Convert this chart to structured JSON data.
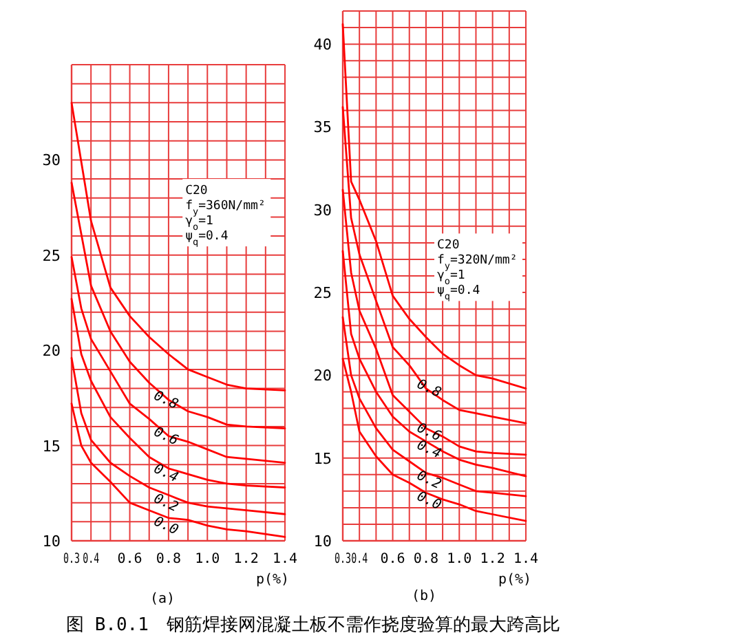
{
  "chart_data": [
    {
      "type": "line",
      "title": "图 B.0.1　钢筋焊接网混凝土板不需作挠度验算的最大跨高比",
      "subtitle": "(a)",
      "xlabel": "p(%)",
      "annotations": [
        "C20",
        "f$_{y}$=360N/mm²",
        "γ$_{o}$=1",
        "ψ$_{q}$=0.4"
      ],
      "x": [
        0.3,
        0.35,
        0.4,
        0.5,
        0.6,
        0.7,
        0.8,
        0.9,
        1.0,
        1.1,
        1.2,
        1.4
      ],
      "series": [
        {
          "color": "#ff0000",
          "values": [
            33.0,
            29.9,
            26.8,
            23.3,
            21.8,
            20.7,
            19.8,
            19.0,
            18.6,
            18.2,
            18.0,
            17.9
          ]
        },
        {
          "name": "0.8",
          "color": "#ff0000",
          "values": [
            28.8,
            26.1,
            23.4,
            21.0,
            19.4,
            18.3,
            17.4,
            16.8,
            16.5,
            16.1,
            16.0,
            15.9
          ]
        },
        {
          "name": "0.6",
          "color": "#ff0000",
          "values": [
            24.9,
            22.2,
            20.6,
            18.9,
            17.2,
            16.4,
            15.5,
            15.2,
            14.8,
            14.4,
            14.3,
            14.1
          ]
        },
        {
          "name": "0.4",
          "color": "#ff0000",
          "values": [
            22.7,
            19.8,
            18.4,
            16.5,
            15.4,
            14.4,
            13.8,
            13.5,
            13.2,
            13.0,
            12.9,
            12.8
          ]
        },
        {
          "name": "0.2",
          "color": "#ff0000",
          "values": [
            19.6,
            16.7,
            15.3,
            14.1,
            13.4,
            12.8,
            12.4,
            12.0,
            11.8,
            11.7,
            11.6,
            11.4
          ]
        },
        {
          "name": "0.0",
          "color": "#ff0000",
          "values": [
            17.2,
            15.0,
            14.1,
            13.1,
            12.0,
            11.6,
            11.2,
            11.1,
            10.8,
            10.6,
            10.5,
            10.2
          ]
        }
      ],
      "xlim": [
        0.3,
        1.4
      ],
      "ylim": [
        10,
        35
      ],
      "xticks": [
        0.3,
        0.4,
        {
          "value": 0.5,
          "label": null
        },
        0.6,
        {
          "value": 0.7,
          "label": null
        },
        0.8,
        {
          "value": 0.9,
          "label": null
        },
        {
          "value": 1.0,
          "label": "1.0"
        },
        {
          "value": 1.1,
          "label": null
        },
        1.2,
        {
          "value": 1.3,
          "label": null
        },
        1.4
      ],
      "yticks": [
        10,
        {
          "value": 11,
          "label": null
        },
        {
          "value": 12,
          "label": null
        },
        {
          "value": 13,
          "label": null
        },
        {
          "value": 14,
          "label": null
        },
        15,
        {
          "value": 16,
          "label": null
        },
        {
          "value": 17,
          "label": null
        },
        {
          "value": 18,
          "label": null
        },
        {
          "value": 19,
          "label": null
        },
        20,
        {
          "value": 21,
          "label": null
        },
        {
          "value": 22,
          "label": null
        },
        {
          "value": 23,
          "label": null
        },
        {
          "value": 24,
          "label": null
        },
        25,
        {
          "value": 26,
          "label": null
        },
        {
          "value": 27,
          "label": null
        },
        {
          "value": 28,
          "label": null
        },
        {
          "value": 29,
          "label": null
        },
        30,
        {
          "value": 31,
          "label": null
        },
        {
          "value": 32,
          "label": null
        },
        {
          "value": 33,
          "label": null
        },
        {
          "value": 34,
          "label": null
        },
        {
          "value": 35,
          "label": null
        }
      ],
      "grid": true,
      "marker": "none",
      "line_style": "solid"
    },
    {
      "type": "line",
      "subtitle": "(b)",
      "xlabel": "p(%)",
      "annotations": [
        "C20",
        "f$_{y}$=320N/mm²",
        "γ$_{o}$=1",
        "ψ$_{q}$=0.4"
      ],
      "x": [
        0.3,
        0.35,
        0.4,
        0.5,
        0.6,
        0.7,
        0.8,
        0.9,
        1.0,
        1.1,
        1.2,
        1.4
      ],
      "series": [
        {
          "color": "#ff0000",
          "values": [
            41.2,
            31.7,
            30.6,
            28.1,
            24.8,
            23.4,
            22.3,
            21.3,
            20.6,
            20.0,
            19.8,
            19.2
          ]
        },
        {
          "name": "0.8",
          "color": "#ff0000",
          "values": [
            36.2,
            29.5,
            27.3,
            24.5,
            21.7,
            20.6,
            19.2,
            18.5,
            17.9,
            17.7,
            17.5,
            17.1
          ]
        },
        {
          "name": "0.6",
          "color": "#ff0000",
          "values": [
            31.2,
            26.2,
            23.9,
            21.6,
            18.8,
            17.8,
            16.8,
            16.3,
            15.7,
            15.4,
            15.3,
            15.2
          ]
        },
        {
          "name": "0.4",
          "color": "#ff0000",
          "values": [
            27.5,
            22.5,
            21.0,
            19.0,
            17.5,
            16.6,
            16.0,
            15.4,
            14.9,
            14.6,
            14.4,
            13.9
          ]
        },
        {
          "name": "0.2",
          "color": "#ff0000",
          "values": [
            23.5,
            20.0,
            18.6,
            16.8,
            15.5,
            14.8,
            14.1,
            13.8,
            13.4,
            13.0,
            12.9,
            12.7
          ]
        },
        {
          "name": "0.0",
          "color": "#ff0000",
          "values": [
            21.0,
            19.0,
            16.6,
            15.1,
            14.0,
            13.5,
            12.9,
            12.5,
            12.2,
            11.8,
            11.6,
            11.2
          ]
        }
      ],
      "xlim": [
        0.3,
        1.4
      ],
      "ylim": [
        10,
        42
      ],
      "xticks": [
        0.3,
        0.4,
        {
          "value": 0.5,
          "label": null
        },
        0.6,
        {
          "value": 0.7,
          "label": null
        },
        0.8,
        {
          "value": 0.9,
          "label": null
        },
        {
          "value": 1.0,
          "label": "1.0"
        },
        {
          "value": 1.1,
          "label": null
        },
        1.2,
        {
          "value": 1.3,
          "label": null
        },
        1.4
      ],
      "yticks": [
        10,
        {
          "value": 11,
          "label": null
        },
        {
          "value": 12,
          "label": null
        },
        {
          "value": 13,
          "label": null
        },
        {
          "value": 14,
          "label": null
        },
        15,
        {
          "value": 16,
          "label": null
        },
        {
          "value": 17,
          "label": null
        },
        {
          "value": 18,
          "label": null
        },
        {
          "value": 19,
          "label": null
        },
        20,
        {
          "value": 21,
          "label": null
        },
        {
          "value": 22,
          "label": null
        },
        {
          "value": 23,
          "label": null
        },
        {
          "value": 24,
          "label": null
        },
        25,
        {
          "value": 26,
          "label": null
        },
        {
          "value": 27,
          "label": null
        },
        {
          "value": 28,
          "label": null
        },
        {
          "value": 29,
          "label": null
        },
        30,
        {
          "value": 31,
          "label": null
        },
        {
          "value": 32,
          "label": null
        },
        {
          "value": 33,
          "label": null
        },
        {
          "value": 34,
          "label": null
        },
        35,
        {
          "value": 36,
          "label": null
        },
        {
          "value": 37,
          "label": null
        },
        {
          "value": 38,
          "label": null
        },
        {
          "value": 39,
          "label": null
        },
        40,
        {
          "value": 41,
          "label": null
        },
        {
          "value": 42,
          "label": null
        }
      ],
      "grid": true,
      "marker": "none",
      "line_style": "solid"
    }
  ]
}
